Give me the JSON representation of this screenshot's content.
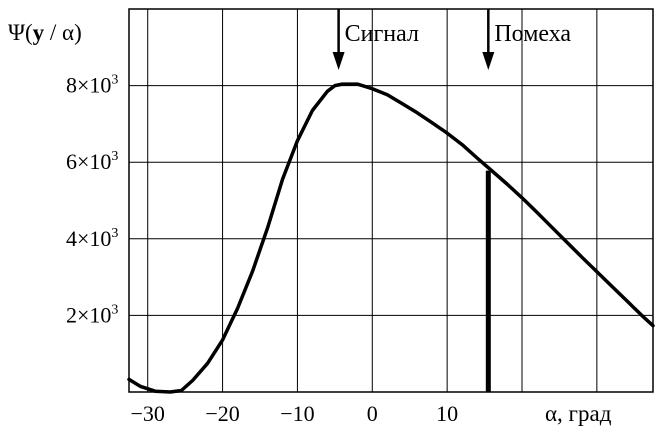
{
  "chart_data": {
    "type": "line",
    "ylabel": {
      "prefix": "Ψ(",
      "bold": "y",
      "suffix": " / α)"
    },
    "xlabel": "α, град",
    "xlim": [
      -32.5,
      37.5
    ],
    "ylim": [
      0,
      10000
    ],
    "grid": true,
    "x_ticks": [
      {
        "value": -30,
        "label": "−30"
      },
      {
        "value": -20,
        "label": "−20"
      },
      {
        "value": -10,
        "label": "−10"
      },
      {
        "value": 0,
        "label": "0"
      },
      {
        "value": 10,
        "label": "10"
      }
    ],
    "x_gridlines": [
      -30,
      -20,
      -10,
      0,
      10,
      20,
      30
    ],
    "y_ticks": [
      {
        "value": 2000,
        "base": "2×10",
        "exp": "3"
      },
      {
        "value": 4000,
        "base": "4×10",
        "exp": "3"
      },
      {
        "value": 6000,
        "base": "6×10",
        "exp": "3"
      },
      {
        "value": 8000,
        "base": "8×10",
        "exp": "3"
      }
    ],
    "series": [
      {
        "x": [
          -32.5,
          -31,
          -29,
          -27,
          -25.5,
          -24,
          -22,
          -20,
          -18,
          -16,
          -14,
          -12,
          -10,
          -8,
          -6,
          -5,
          -4,
          -2,
          0,
          2,
          4,
          6,
          8,
          10,
          12,
          14,
          16,
          18,
          20,
          22,
          24,
          26,
          28,
          30,
          32,
          34,
          36,
          37.5
        ],
        "y": [
          330,
          150,
          20,
          0,
          40,
          300,
          750,
          1360,
          2180,
          3150,
          4280,
          5550,
          6560,
          7350,
          7850,
          8000,
          8040,
          8040,
          7920,
          7760,
          7530,
          7290,
          7030,
          6760,
          6460,
          6110,
          5770,
          5430,
          5070,
          4690,
          4300,
          3910,
          3520,
          3140,
          2760,
          2380,
          2000,
          1730
        ]
      }
    ],
    "spike": {
      "x": 15.5,
      "y_top": 5780
    },
    "annotations": [
      {
        "text": "Сигнал",
        "x": -4.5
      },
      {
        "text": "Помеха",
        "x": 15.5
      }
    ]
  }
}
